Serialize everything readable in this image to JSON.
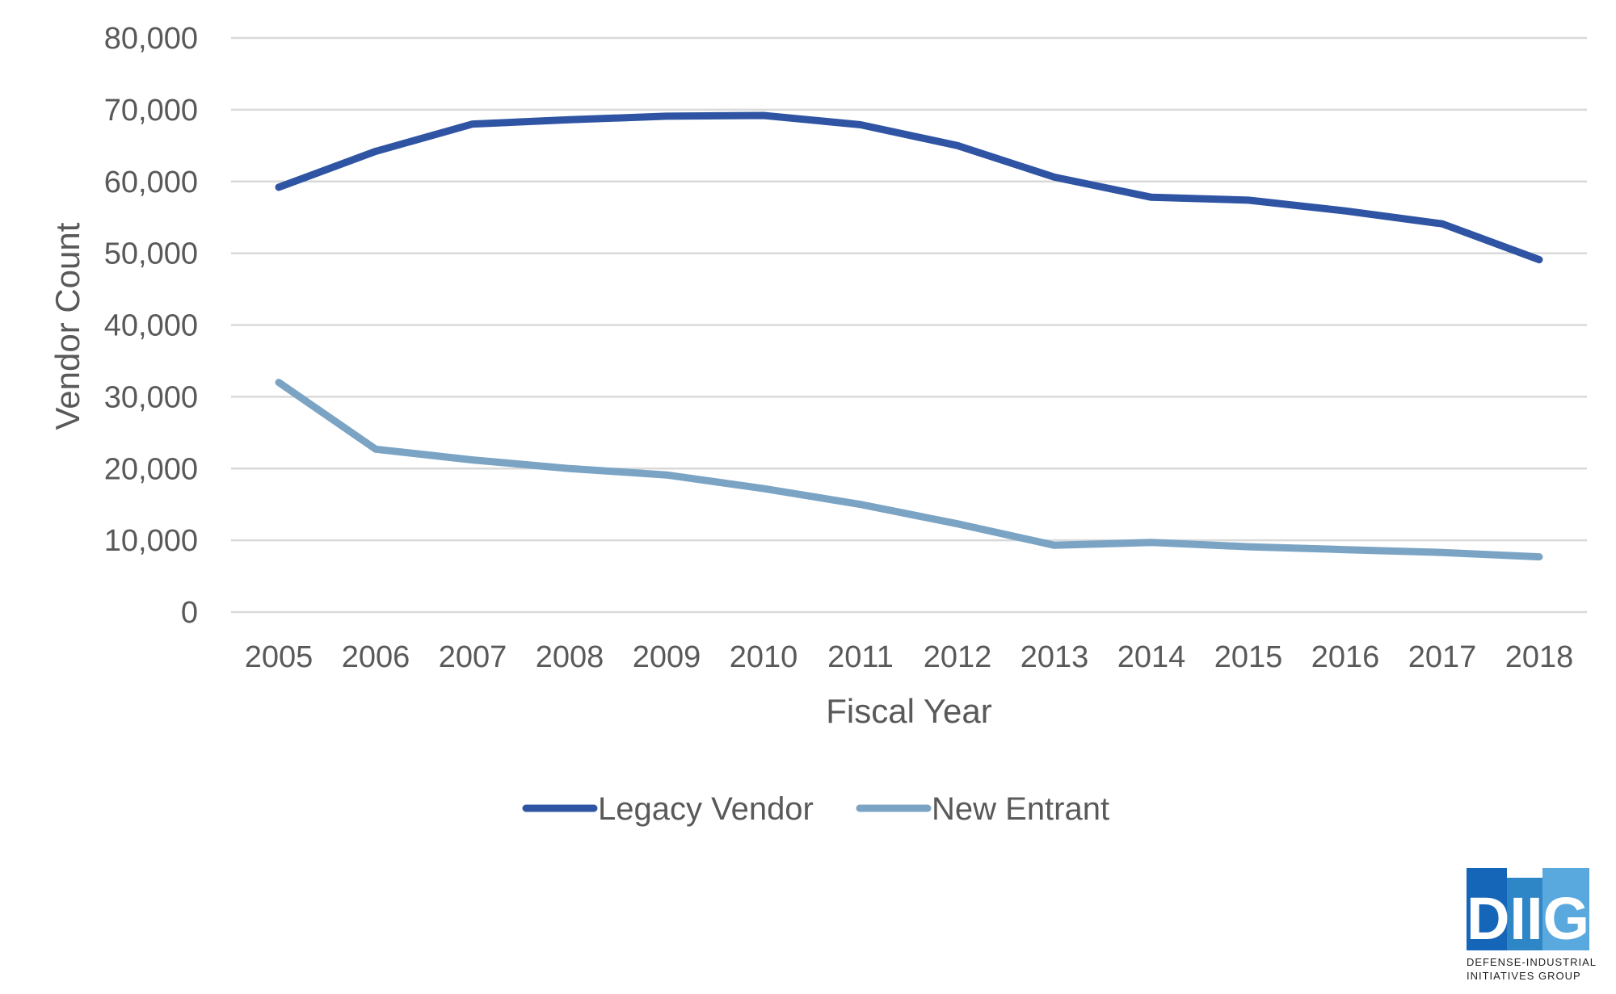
{
  "chart_data": {
    "type": "line",
    "title": "",
    "xlabel": "Fiscal Year",
    "ylabel": "Vendor Count",
    "ylim": [
      0,
      80000
    ],
    "yticks": [
      0,
      10000,
      20000,
      30000,
      40000,
      50000,
      60000,
      70000,
      80000
    ],
    "ytick_labels": [
      "0",
      "10,000",
      "20,000",
      "30,000",
      "40,000",
      "50,000",
      "60,000",
      "70,000",
      "80,000"
    ],
    "categories": [
      "2005",
      "2006",
      "2007",
      "2008",
      "2009",
      "2010",
      "2011",
      "2012",
      "2013",
      "2014",
      "2015",
      "2016",
      "2017",
      "2018"
    ],
    "grid": true,
    "legend_position": "bottom",
    "series": [
      {
        "name": "Legacy Vendor",
        "color": "#2e54a3",
        "values": [
          59200,
          64200,
          68000,
          68600,
          69100,
          69200,
          67900,
          65000,
          60600,
          57800,
          57400,
          55900,
          54100,
          49100
        ]
      },
      {
        "name": "New Entrant",
        "color": "#7ba4c4",
        "values": [
          32000,
          22700,
          21200,
          20000,
          19100,
          17200,
          15000,
          12300,
          9300,
          9700,
          9100,
          8700,
          8300,
          7700
        ]
      }
    ]
  },
  "logo": {
    "brand": "DIIG",
    "line1": "DEFENSE-INDUSTRIAL",
    "line2": "INITIATIVES GROUP",
    "colors": [
      "#1565b8",
      "#2f86c6",
      "#5aa9de"
    ]
  }
}
